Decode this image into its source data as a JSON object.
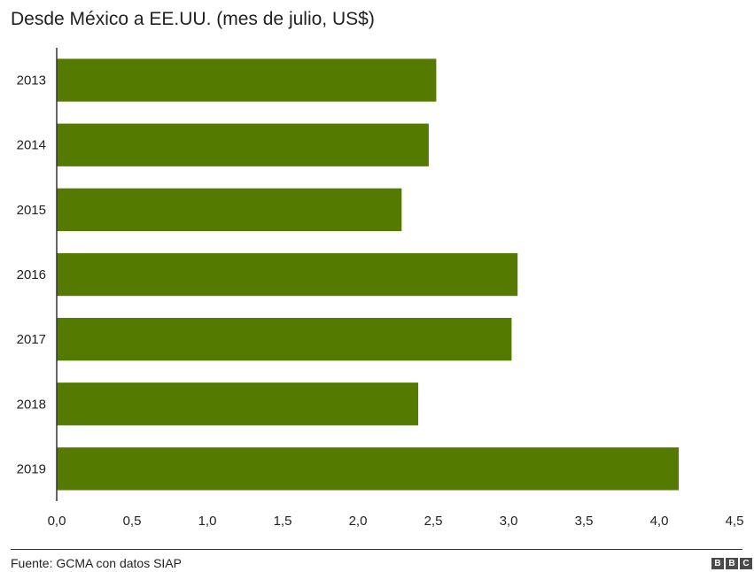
{
  "title": "Desde México a EE.UU. (mes de julio, US$)",
  "source": "Fuente: GCMA con datos SIAP",
  "logo": [
    "B",
    "B",
    "C"
  ],
  "colors": {
    "bar": "#547b00",
    "axis": "#333333",
    "text": "#222222"
  },
  "chart_data": {
    "type": "bar",
    "orientation": "horizontal",
    "title": "Desde México a EE.UU. (mes de julio, US$)",
    "categories": [
      "2013",
      "2014",
      "2015",
      "2016",
      "2017",
      "2018",
      "2019"
    ],
    "values": [
      2.52,
      2.47,
      2.29,
      3.06,
      3.02,
      2.4,
      4.13
    ],
    "xlim": [
      0,
      4.5
    ],
    "xticks": [
      "0,0",
      "0,5",
      "1,0",
      "1,5",
      "2,0",
      "2,5",
      "3,0",
      "3,5",
      "4,0",
      "4,5"
    ],
    "xlabel": "",
    "ylabel": "",
    "grid": false,
    "legend": "none"
  }
}
